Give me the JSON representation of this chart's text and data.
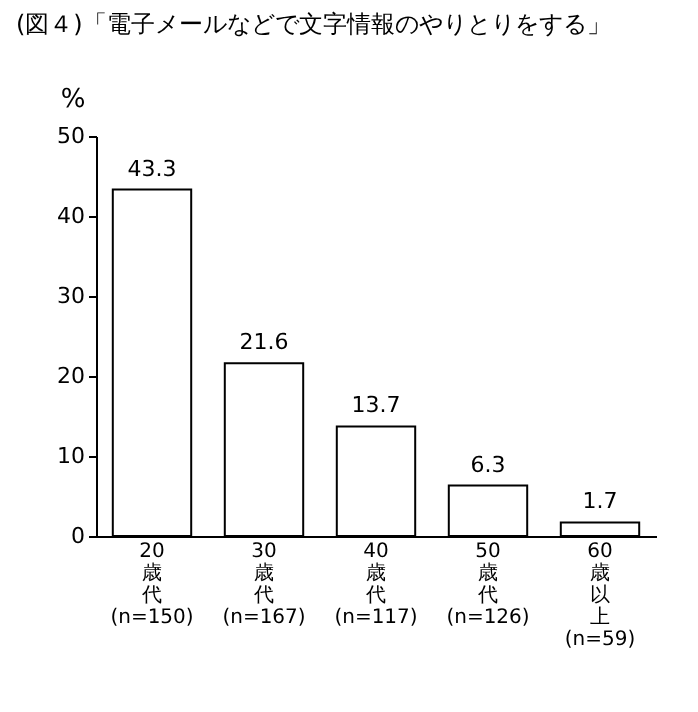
{
  "chart_data": {
    "type": "bar",
    "title": "(図４)「電子メールなどで文字情報のやりとりをする」",
    "ylabel": "%",
    "categories": [
      "20歳代(n=150)",
      "30歳代(n=167)",
      "40歳代(n=117)",
      "50歳代(n=126)",
      "60歳以上(n=59)"
    ],
    "values": [
      43.3,
      21.6,
      13.7,
      6.3,
      1.7
    ],
    "color": "#ffffff",
    "ylim": [
      0,
      50
    ],
    "yticks": [
      0,
      10,
      20,
      30,
      40,
      50
    ],
    "grid": false,
    "data_labels": true
  }
}
